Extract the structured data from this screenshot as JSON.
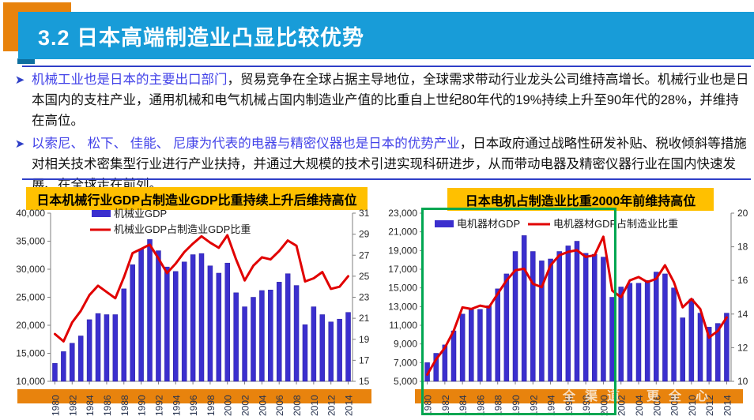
{
  "header": {
    "title": "3.2 日本高端制造业凸显比较优势"
  },
  "bullets": [
    {
      "highlight": "机械工业也是日本的主要出口部门",
      "rest": "，贸易竞争在全球占据主导地位，全球需求带动行业龙头公司维持高增长。机械行业也是日本国内的支柱产业，通用机械和电气机械占国内制造业产值的比重自上世纪80年代的19%持续上升至90年代的28%，并维持在高位。"
    },
    {
      "highlight": "以索尼、 松下、 佳能、 尼康为代表的电器与精密仪器也是日本的优势产业",
      "rest": "，日本政府通过战略性研发补贴、税收倾斜等措施对相关技术密集型行业进行产业扶持，并通过大规模的技术引进实现科研进步，从而带动电器及精密仪器行业在国内快速发展、在全球走在前列。"
    }
  ],
  "colors": {
    "titlebar_blue": "#189CD8",
    "accent_orange": "#E8830D",
    "chart_title_gold": "#FFC000",
    "bar": "#3B2FCE",
    "bar_stroke": "#2A1FA0",
    "line": "#E10000",
    "axis": "#7F7F7F",
    "axis_text": "#262626",
    "year_text": "#26324E",
    "band_orange": "#E8830D",
    "highlight_green": "#00A651",
    "separator_blue": "#2F3FC7"
  },
  "watermark": {
    "segments": [
      {
        "text": "全渠道",
        "x": 712
      },
      {
        "text": "更全",
        "x": 818
      },
      {
        "text": "心",
        "x": 880
      }
    ]
  },
  "chart_data": [
    {
      "type": "bar",
      "title": "日本机械行业GDP占制造业GDP比重持续上升后维持高位",
      "x": [
        1980,
        1981,
        1982,
        1983,
        1984,
        1985,
        1986,
        1987,
        1988,
        1989,
        1990,
        1991,
        1992,
        1993,
        1994,
        1995,
        1996,
        1997,
        1998,
        1999,
        2000,
        2001,
        2002,
        2003,
        2004,
        2005,
        2006,
        2007,
        2008,
        2009,
        2010,
        2011,
        2012,
        2013,
        2014
      ],
      "x_tick_step": 2,
      "series": [
        {
          "name": "机械业GDP",
          "type": "bar",
          "axis": "left",
          "values": [
            13200,
            15300,
            16800,
            18100,
            21000,
            22100,
            21900,
            21900,
            26500,
            30800,
            33600,
            35300,
            33300,
            30400,
            29600,
            31300,
            32600,
            32800,
            30600,
            29300,
            31100,
            25800,
            23300,
            25000,
            26200,
            26300,
            27700,
            29200,
            27100,
            20100,
            23300,
            21900,
            20600,
            21100,
            22300
          ]
        },
        {
          "name": "机械业GDP占制造业GDP比重",
          "type": "line",
          "axis": "right",
          "values": [
            19.5,
            18.8,
            20.6,
            21.7,
            23.2,
            24.1,
            23.5,
            22.9,
            24.9,
            27.2,
            27.6,
            28.0,
            26.7,
            25.3,
            26.2,
            27.3,
            28.1,
            28.8,
            28.2,
            27.7,
            28.9,
            26.6,
            24.6,
            26.0,
            26.8,
            26.6,
            27.4,
            28.4,
            27.9,
            24.5,
            24.8,
            25.4,
            23.8,
            24.0,
            25.0
          ]
        }
      ],
      "left_axis": {
        "min": 10000,
        "max": 40000,
        "step": 5000
      },
      "right_axis": {
        "min": 15,
        "max": 31,
        "step": 2
      },
      "grid": false,
      "legend_position": "top-left-stacked"
    },
    {
      "type": "bar",
      "title": "日本电机占制造业比重2000年前维持高位",
      "x": [
        1980,
        1981,
        1982,
        1983,
        1984,
        1985,
        1986,
        1987,
        1988,
        1989,
        1990,
        1991,
        1992,
        1993,
        1994,
        1995,
        1996,
        1997,
        1998,
        1999,
        2000,
        2001,
        2002,
        2003,
        2004,
        2005,
        2006,
        2007,
        2008,
        2009,
        2010,
        2011,
        2012,
        2013,
        2014
      ],
      "x_tick_step": 2,
      "series": [
        {
          "name": "电机器材GDP",
          "type": "bar",
          "axis": "left",
          "values": [
            7000,
            8000,
            8900,
            10400,
            12200,
            12700,
            12700,
            13100,
            14900,
            16500,
            18900,
            20600,
            18900,
            17900,
            18100,
            18900,
            19500,
            20000,
            18700,
            18600,
            18300,
            14000,
            15100,
            15500,
            15500,
            15800,
            16700,
            16500,
            15000,
            11800,
            13800,
            12300,
            10800,
            11200,
            12300
          ]
        },
        {
          "name": "电机器材GDP占制造业比重",
          "type": "line",
          "axis": "right",
          "values": [
            10.4,
            11.3,
            12.0,
            13.0,
            14.4,
            14.3,
            14.5,
            14.4,
            15.2,
            16.0,
            16.6,
            16.7,
            15.8,
            15.6,
            16.9,
            17.5,
            17.7,
            17.8,
            17.4,
            17.5,
            18.6,
            15.4,
            15.0,
            16.0,
            16.2,
            15.9,
            16.1,
            16.9,
            15.9,
            14.4,
            14.9,
            14.3,
            12.6,
            13.0,
            13.8
          ]
        }
      ],
      "left_axis": {
        "min": 5000,
        "max": 23000,
        "step": 2000
      },
      "right_axis": {
        "min": 10,
        "max": 20,
        "step": 2
      },
      "grid": false,
      "legend_position": "top-row",
      "highlight_box_years": [
        1980,
        2000
      ]
    }
  ]
}
